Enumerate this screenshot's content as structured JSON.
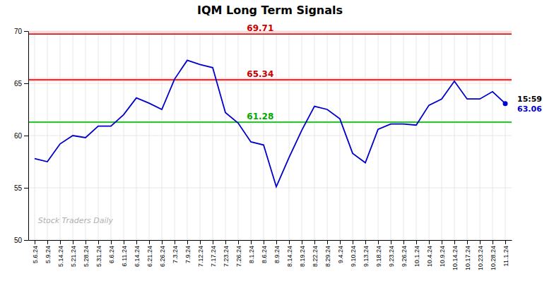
{
  "chart_data": {
    "type": "line",
    "title": "IQM Long Term Signals",
    "categories": [
      "5.6.24",
      "5.9.24",
      "5.14.24",
      "5.21.24",
      "5.28.24",
      "5.31.24",
      "6.6.24",
      "6.11.24",
      "6.14.24",
      "6.21.24",
      "6.26.24",
      "7.3.24",
      "7.9.24",
      "7.12.24",
      "7.17.24",
      "7.23.24",
      "7.26.24",
      "8.1.24",
      "8.6.24",
      "8.9.24",
      "8.14.24",
      "8.19.24",
      "8.22.24",
      "8.29.24",
      "9.4.24",
      "9.10.24",
      "9.13.24",
      "9.18.24",
      "9.23.24",
      "9.26.24",
      "10.1.24",
      "10.4.24",
      "10.9.24",
      "10.14.24",
      "10.17.24",
      "10.23.24",
      "10.28.24",
      "11.1.24"
    ],
    "values": [
      57.8,
      57.5,
      59.2,
      60.0,
      59.8,
      60.9,
      60.9,
      62.0,
      63.6,
      63.1,
      62.5,
      65.4,
      67.2,
      66.8,
      66.5,
      62.2,
      61.2,
      59.4,
      59.1,
      55.1,
      57.9,
      60.5,
      62.8,
      62.5,
      61.6,
      58.3,
      57.4,
      60.6,
      61.1,
      61.1,
      61.0,
      62.9,
      63.5,
      65.2,
      63.5,
      63.5,
      64.2,
      63.06
    ],
    "color": "#0000cc",
    "ylim": [
      50,
      70
    ],
    "yticks": [
      50,
      55,
      60,
      65,
      70
    ],
    "grid": true,
    "bands": [
      {
        "from": 69.71,
        "to": 70,
        "color": "#ffcccc"
      },
      {
        "from": 65.16,
        "to": 65.52,
        "color": "#ffcccc"
      },
      {
        "from": 61.16,
        "to": 61.4,
        "color": "#ccffcc"
      }
    ],
    "reference_lines": [
      {
        "value": 69.71,
        "label": "69.71",
        "color": "#cc0000"
      },
      {
        "value": 65.34,
        "label": "65.34",
        "color": "#cc0000"
      },
      {
        "value": 61.28,
        "label": "61.28",
        "color": "#00aa00"
      }
    ],
    "annotations": [
      {
        "text": "15:59",
        "color": "#000000"
      },
      {
        "text": "63.06",
        "value": 63.06,
        "color": "#0000cc"
      }
    ],
    "watermark": {
      "text": "Stock Traders Daily",
      "color": "#b0b0b0"
    }
  }
}
